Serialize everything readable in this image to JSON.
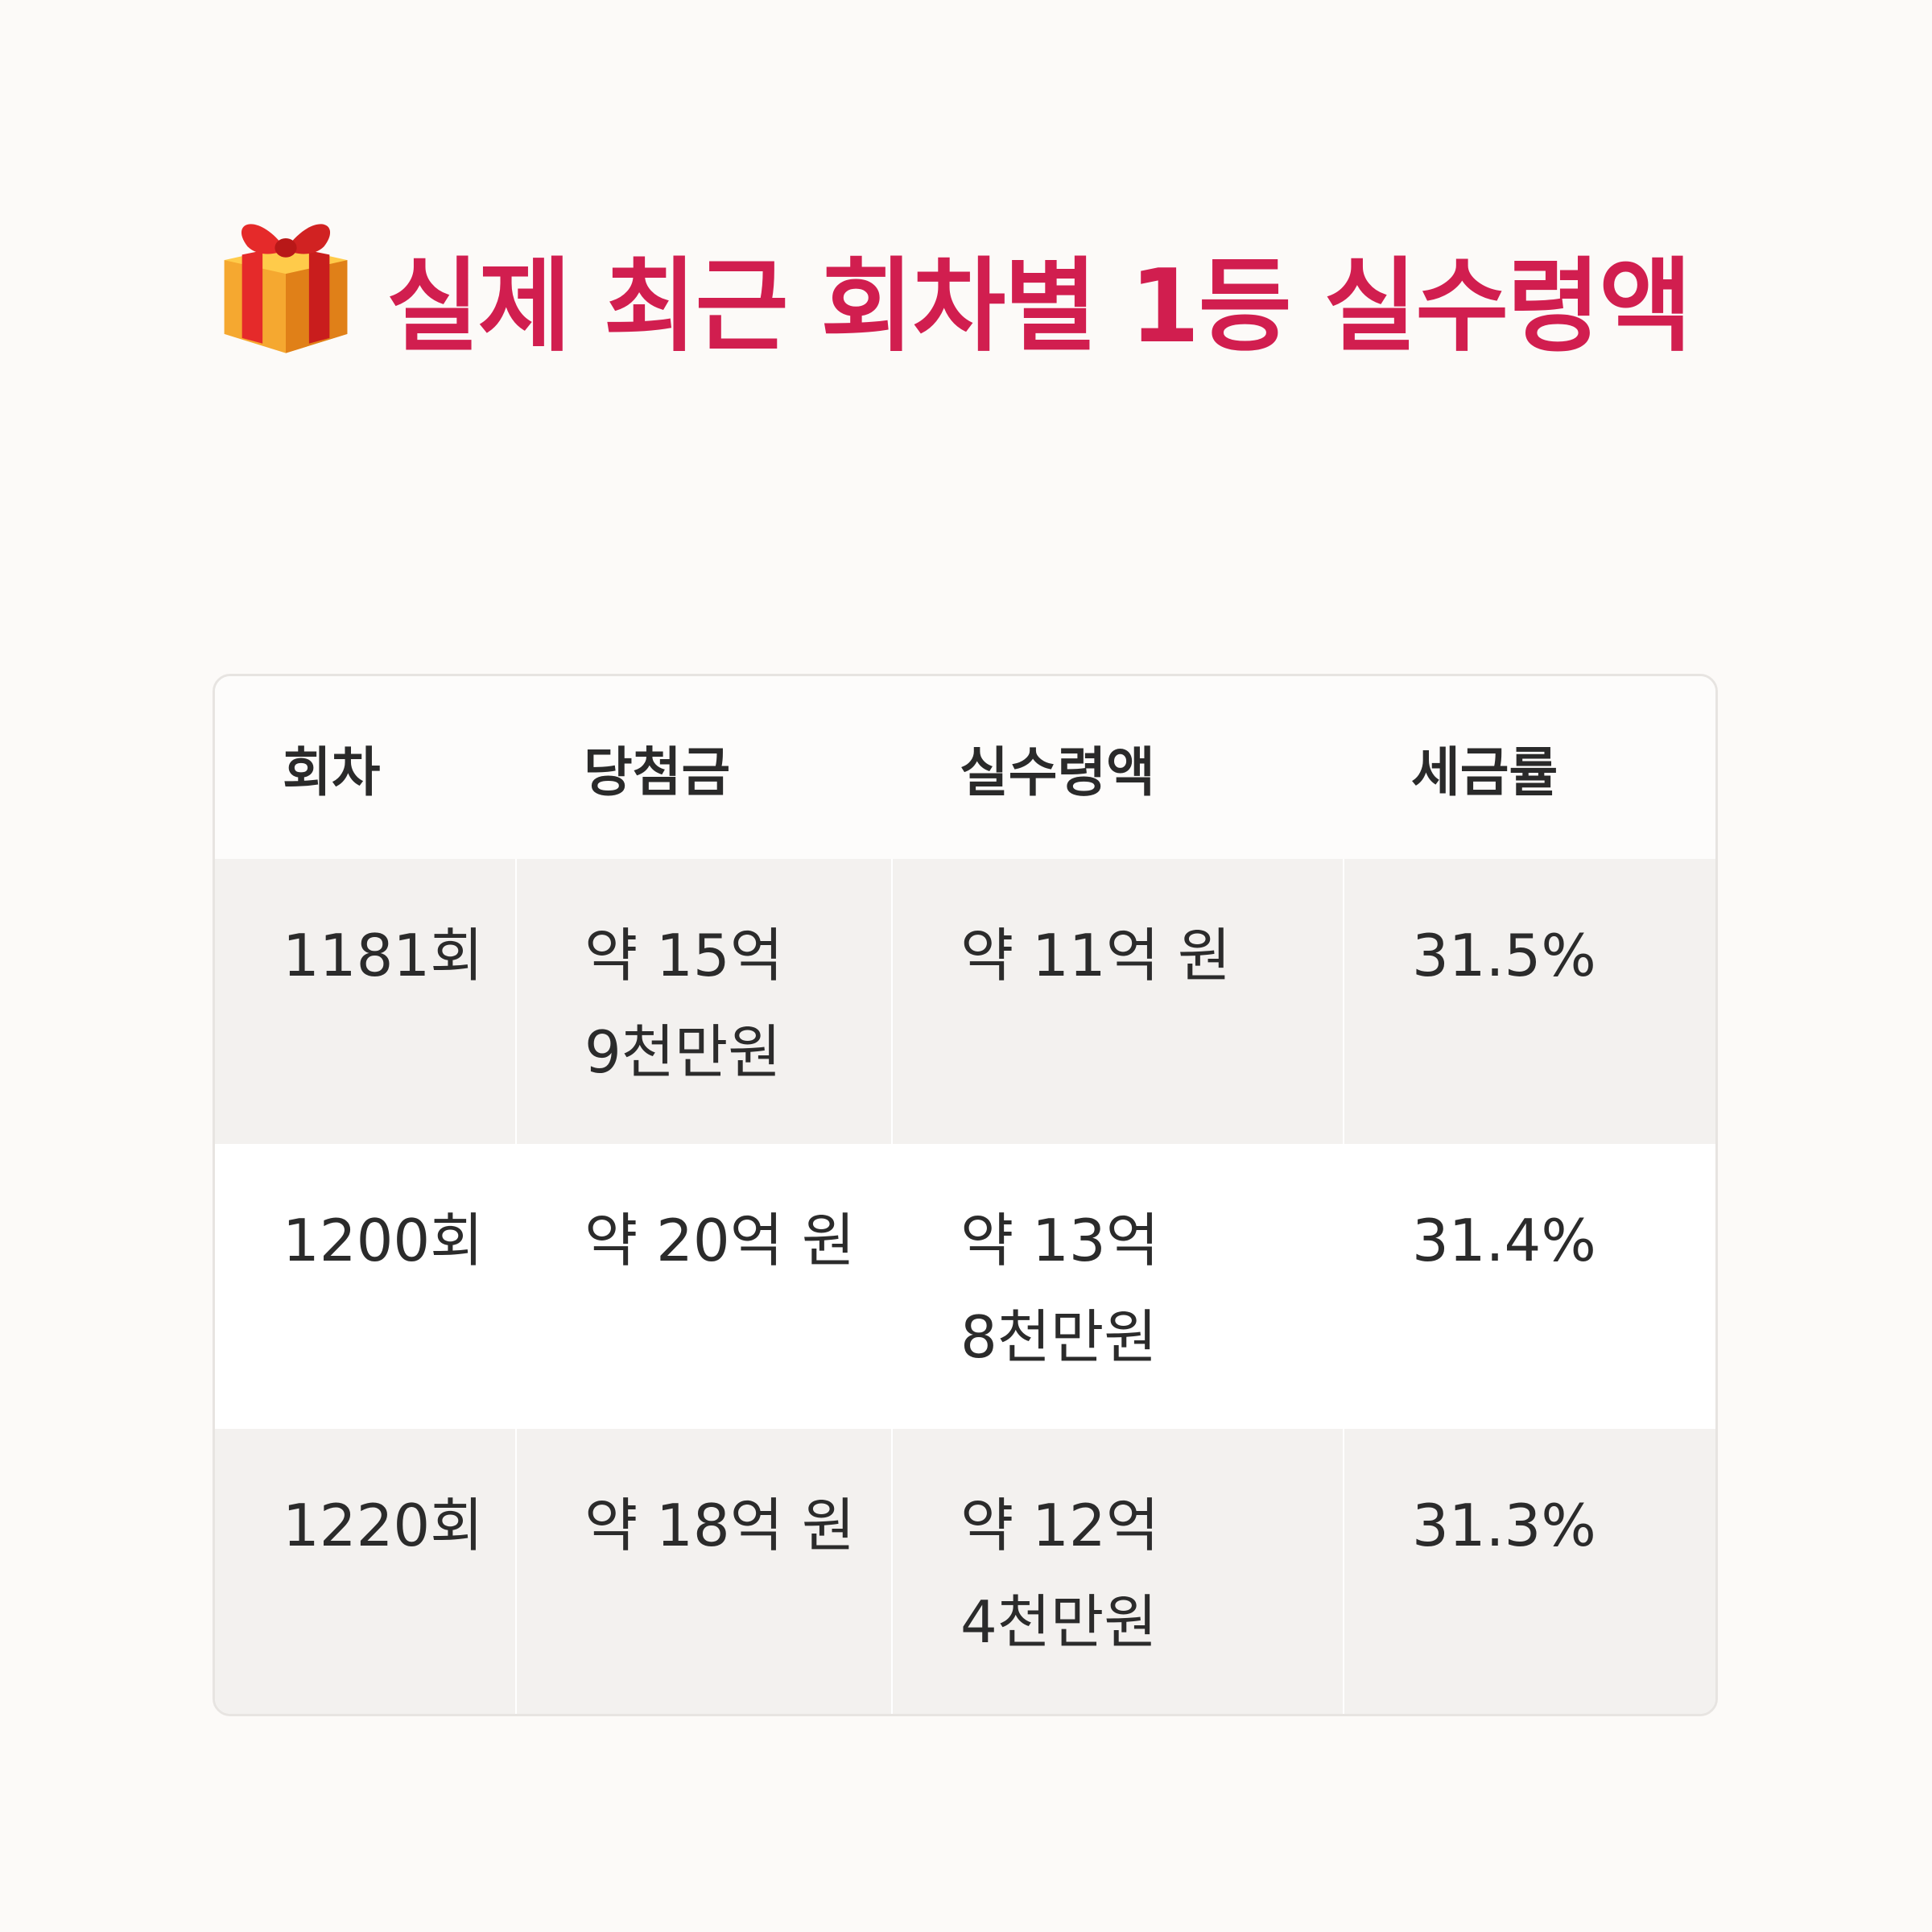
{
  "title": {
    "icon": "gift-icon",
    "text": "실제 최근 회차별 1등 실수령액",
    "color": "#d11e4f"
  },
  "table": {
    "headers": [
      "회차",
      "당첨금",
      "실수령액",
      "세금률"
    ],
    "rows": [
      {
        "round": "1181회",
        "prize": "약 15억 9천만원",
        "net": "약 11억 원",
        "tax": "31.5%"
      },
      {
        "round": "1200회",
        "prize": "약 20억 원",
        "net": "약 13억 8천만원",
        "tax": "31.4%"
      },
      {
        "round": "1220회",
        "prize": "약 18억 원",
        "net": "약 12억 4천만원",
        "tax": "31.3%"
      }
    ]
  }
}
